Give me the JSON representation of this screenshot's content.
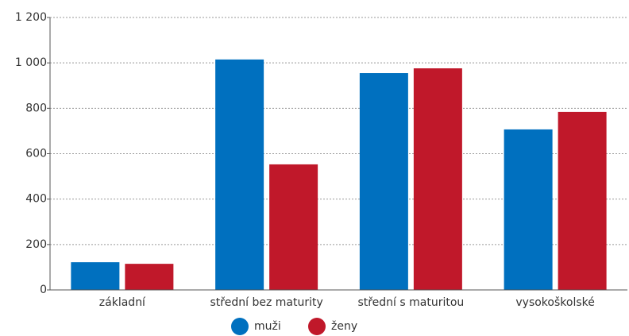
{
  "chart_data": {
    "type": "bar",
    "categories": [
      "základní",
      "střední bez maturity",
      "střední s maturitou",
      "vysokoškolské"
    ],
    "series": [
      {
        "name": "muži",
        "color": "#0070bf",
        "values": [
          122,
          1015,
          955,
          707
        ]
      },
      {
        "name": "ženy",
        "color": "#c0182a",
        "values": [
          115,
          553,
          976,
          784
        ]
      }
    ],
    "ylim": [
      0,
      1200
    ],
    "yticks": [
      0,
      200,
      400,
      600,
      800,
      {
        "value": 1000,
        "label": "1 000"
      },
      {
        "value": 1200,
        "label": "1 200"
      }
    ],
    "grid": true,
    "legend": "bottom"
  }
}
